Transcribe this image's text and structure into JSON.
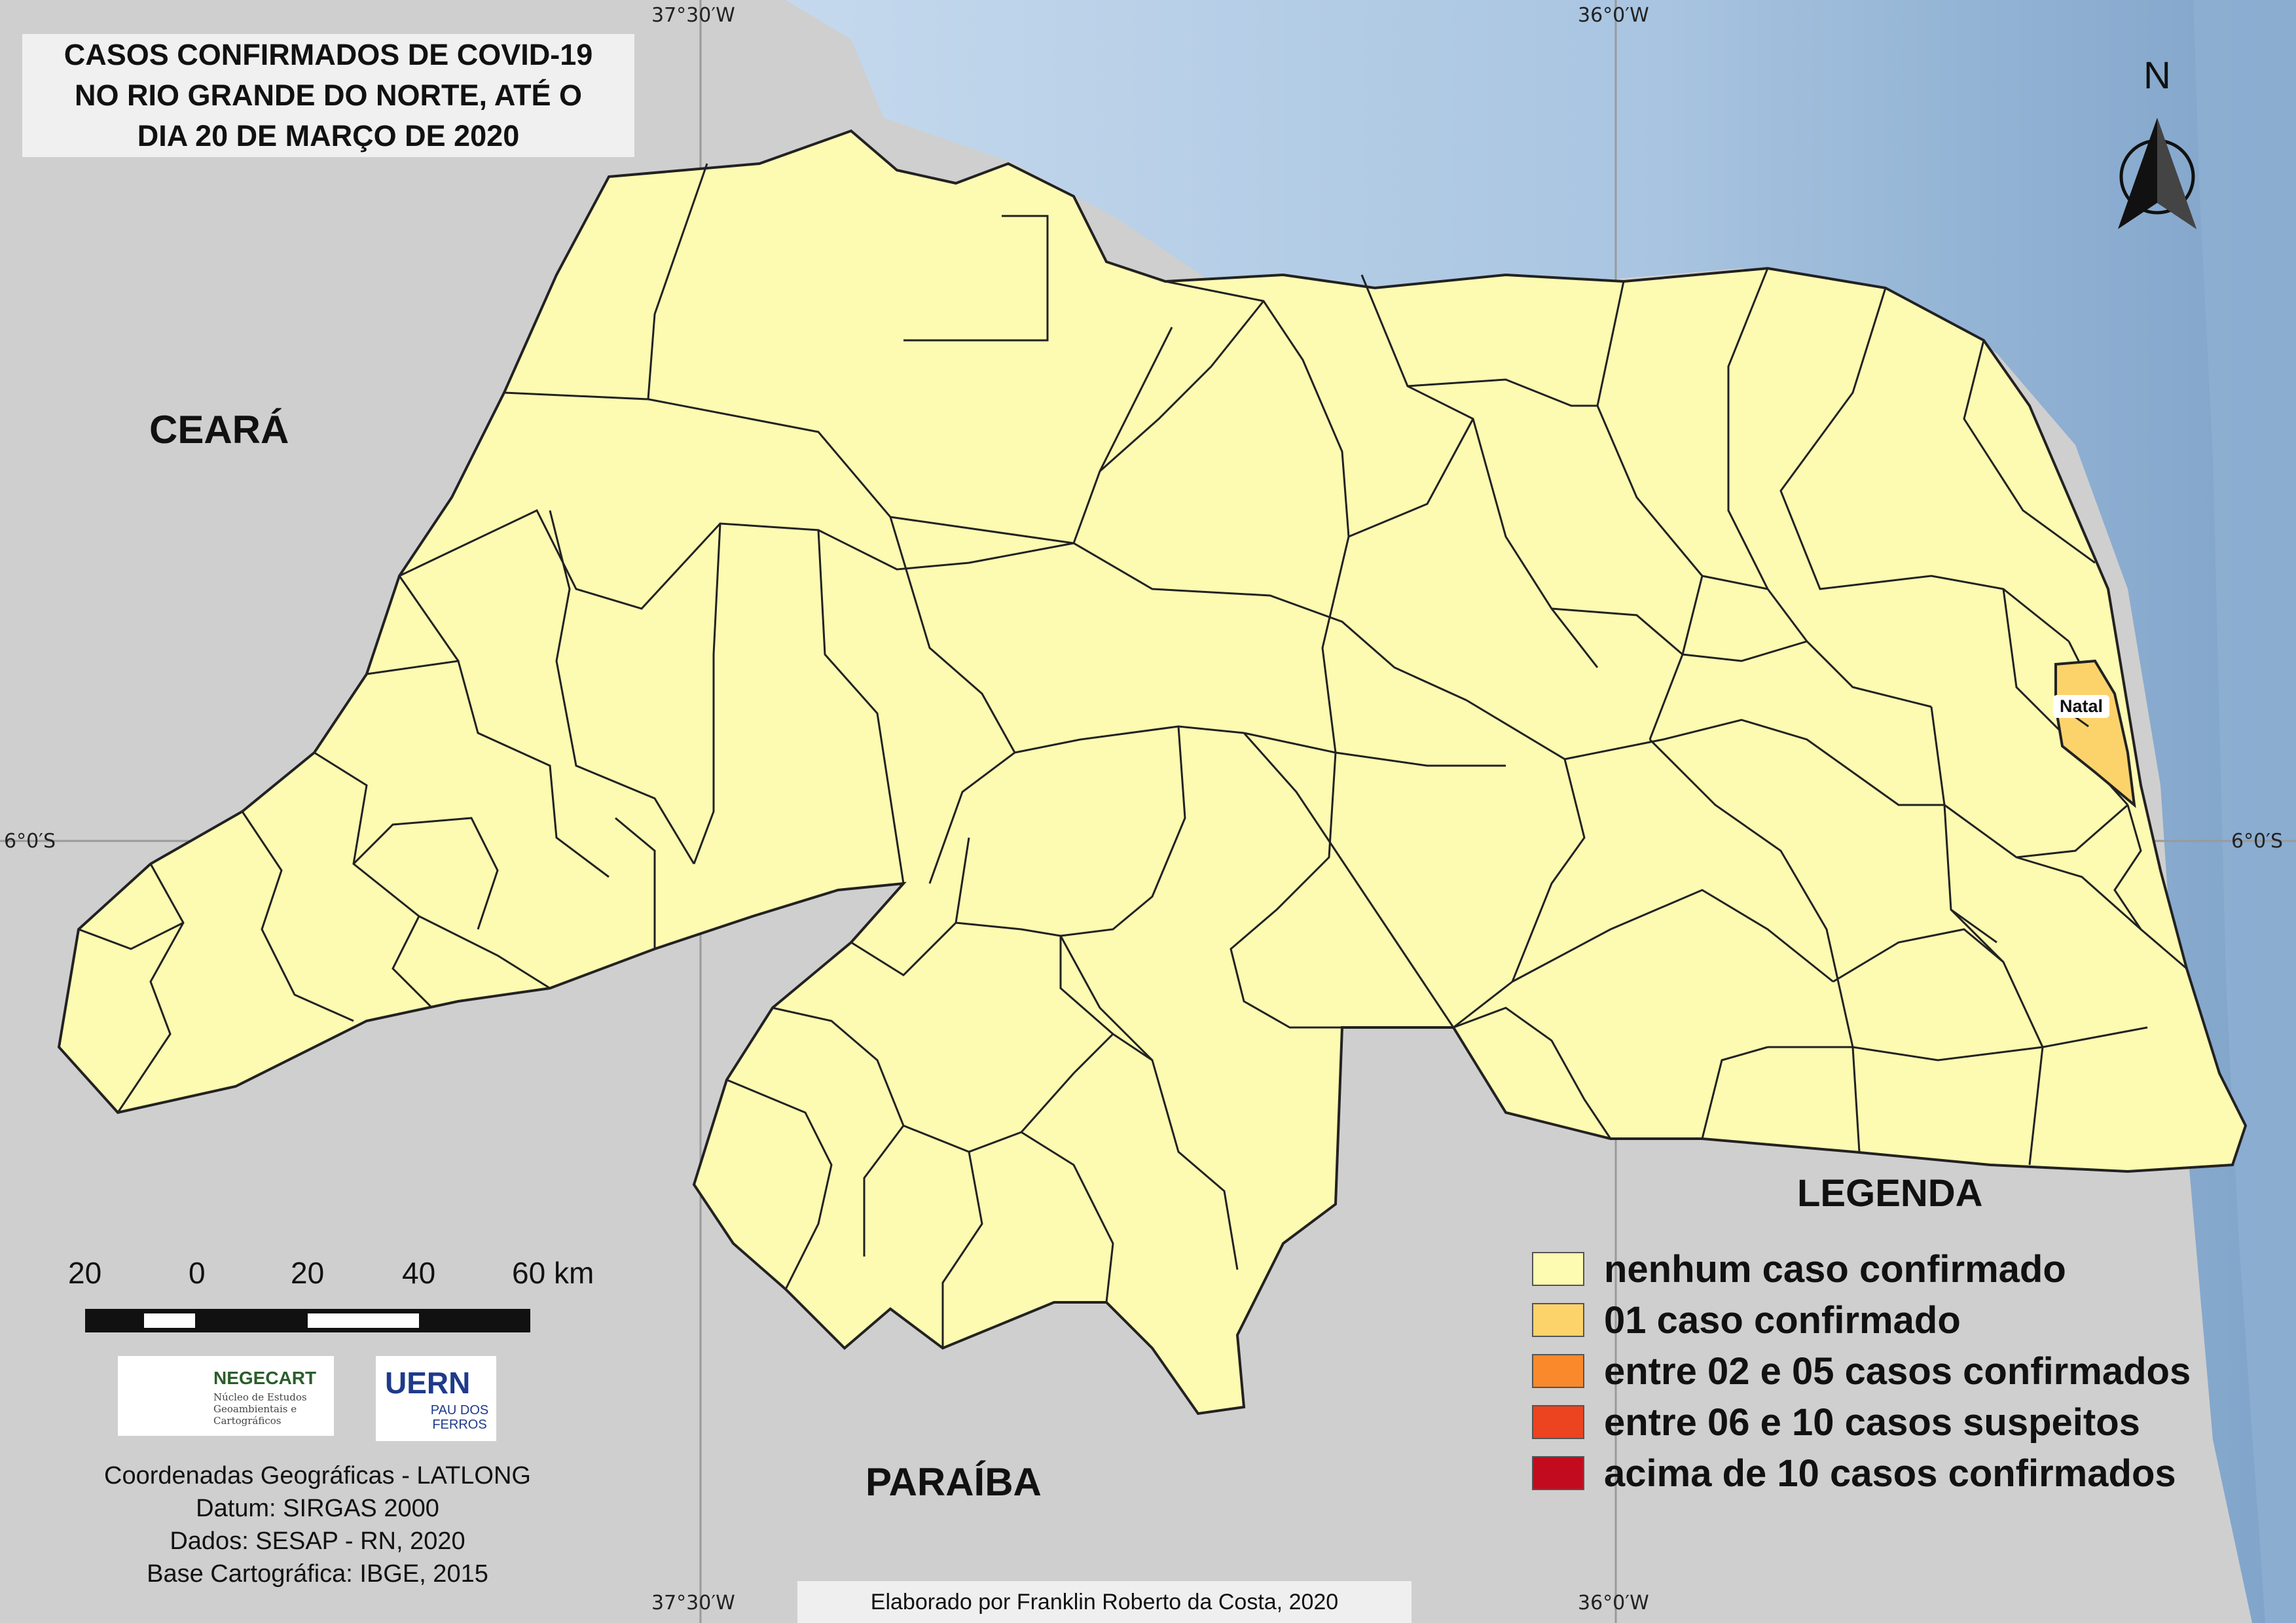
{
  "title": "CASOS CONFIRMADOS DE COVID-19\nNO RIO GRANDE DO NORTE, ATÉ O\nDIA 20 DE MARÇO DE 2020",
  "grid": {
    "lon_left": "37°30′W",
    "lon_right": "36°0′W",
    "lat": "6°0′S"
  },
  "neighbor_states": {
    "west": "CEARÁ",
    "south": "PARAÍBA"
  },
  "highlight_city": "Natal",
  "north_arrow": "N",
  "legend": {
    "title": "LEGENDA",
    "items": [
      {
        "label": "nenhum caso confirmado",
        "color": "#fdfbb2"
      },
      {
        "label": "01 caso confirmado",
        "color": "#fcd36b"
      },
      {
        "label": "entre 02 e 05 casos confirmados",
        "color": "#f9892b"
      },
      {
        "label": "entre 06 e 10 casos suspeitos",
        "color": "#ec4320"
      },
      {
        "label": "acima de 10 casos confirmados",
        "color": "#c20b1e"
      }
    ]
  },
  "scale": {
    "labels": [
      "20",
      "0",
      "20",
      "40",
      "60 km"
    ]
  },
  "logos": {
    "negecart": {
      "name": "NEGECART",
      "sub": "Núcleo de Estudos Geoambientais e Cartográficos"
    },
    "uern": {
      "name": "UERN",
      "sub": "PAU DOS FERROS"
    }
  },
  "info": [
    "Coordenadas Geográficas - LATLONG",
    "Datum: SIRGAS 2000",
    "Dados: SESAP - RN, 2020",
    "Base Cartográfica: IBGE, 2015"
  ],
  "credits": "Elaborado por Franklin Roberto da Costa, 2020",
  "colors": {
    "ocean": "#aac6e2",
    "land_other": "#d6d6d6",
    "state_fill": "#fdfbb2",
    "natal_fill": "#fcd36b",
    "border": "#222222"
  }
}
